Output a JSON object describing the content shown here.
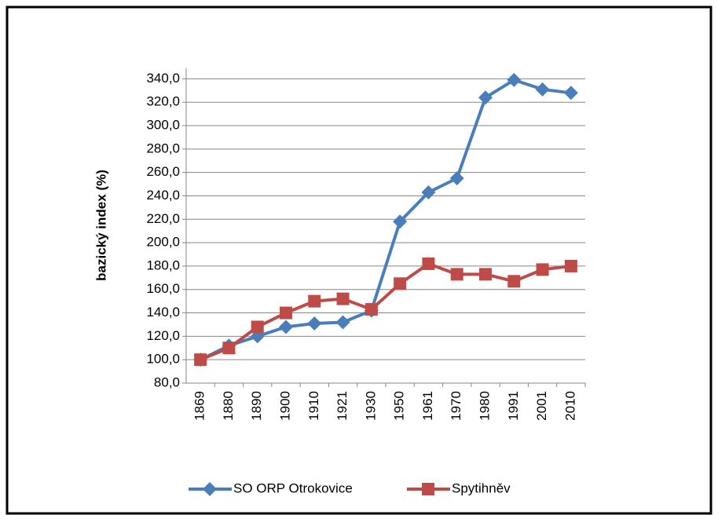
{
  "chart_data": {
    "type": "line",
    "y_label": "bazický index (%)",
    "categories": [
      "1869",
      "1880",
      "1890",
      "1900",
      "1910",
      "1921",
      "1930",
      "1950",
      "1961",
      "1970",
      "1980",
      "1991",
      "2001",
      "2010"
    ],
    "series": [
      {
        "name": "SO ORP Otrokovice",
        "color": "#4a7ebb",
        "marker": "diamond",
        "values": [
          100,
          112,
          120,
          128,
          131,
          132,
          142,
          218,
          243,
          255,
          324,
          339,
          331,
          328
        ]
      },
      {
        "name": "Spytihněv",
        "color": "#be4b48",
        "marker": "square",
        "values": [
          100,
          110,
          128,
          140,
          150,
          152,
          143,
          165,
          182,
          173,
          173,
          167,
          177,
          180
        ]
      }
    ],
    "ylim": [
      80,
      349
    ],
    "yticks": [
      {
        "value": 80,
        "label": "80,0"
      },
      {
        "value": 100,
        "label": "100,0"
      },
      {
        "value": 120,
        "label": "120,0"
      },
      {
        "value": 140,
        "label": "140,0"
      },
      {
        "value": 160,
        "label": "160,0"
      },
      {
        "value": 180,
        "label": "180,0"
      },
      {
        "value": 200,
        "label": "200,0"
      },
      {
        "value": 220,
        "label": "220,0"
      },
      {
        "value": 240,
        "label": "240,0"
      },
      {
        "value": 260,
        "label": "260,0"
      },
      {
        "value": 280,
        "label": "280,0"
      },
      {
        "value": 300,
        "label": "300,0"
      },
      {
        "value": 320,
        "label": "320,0"
      },
      {
        "value": 340,
        "label": "340,0"
      }
    ],
    "grid": true,
    "legend": "bottom"
  }
}
